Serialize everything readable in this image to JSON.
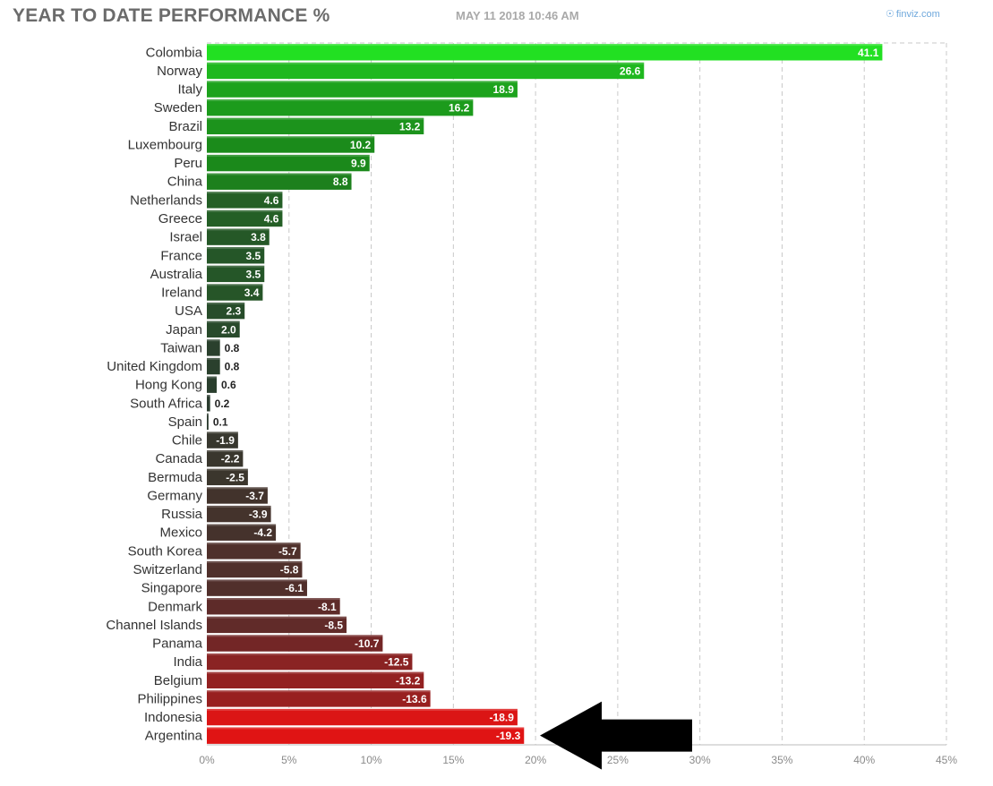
{
  "header": {
    "title": "YEAR TO DATE PERFORMANCE %",
    "timestamp": "MAY 11 2018 10:46 AM",
    "brand": "finviz.com",
    "brand_icon": "globe-icon"
  },
  "colors": {
    "positive_strong": "#22e022",
    "positive_mid": "#1b8a1b",
    "neutral_dark": "#2b3a2f",
    "negative_mid": "#6a2828",
    "negative_strong": "#e01414",
    "gridline": "#c8c8c8",
    "annotation_arrow": "#000000"
  },
  "chart_data": {
    "type": "bar",
    "orientation": "horizontal",
    "title": "YEAR TO DATE PERFORMANCE %",
    "xlim": [
      0,
      45
    ],
    "x_tick_values": [
      0,
      5,
      10,
      15,
      20,
      25,
      30,
      35,
      40,
      45
    ],
    "x_tick_labels": [
      "0%",
      "5%",
      "10%",
      "15%",
      "20%",
      "25%",
      "30%",
      "35%",
      "40%",
      "45%"
    ],
    "grid": true,
    "bar_length": "absolute value",
    "categories": [
      "Colombia",
      "Norway",
      "Italy",
      "Sweden",
      "Brazil",
      "Luxembourg",
      "Peru",
      "China",
      "Netherlands",
      "Greece",
      "Israel",
      "France",
      "Australia",
      "Ireland",
      "USA",
      "Japan",
      "Taiwan",
      "United Kingdom",
      "Hong Kong",
      "South Africa",
      "Spain",
      "Chile",
      "Canada",
      "Bermuda",
      "Germany",
      "Russia",
      "Mexico",
      "South Korea",
      "Switzerland",
      "Singapore",
      "Denmark",
      "Channel Islands",
      "Panama",
      "India",
      "Belgium",
      "Philippines",
      "Indonesia",
      "Argentina"
    ],
    "values": [
      41.1,
      26.6,
      18.9,
      16.2,
      13.2,
      10.2,
      9.9,
      8.8,
      4.6,
      4.6,
      3.8,
      3.5,
      3.5,
      3.4,
      2.3,
      2.0,
      0.8,
      0.8,
      0.6,
      0.2,
      0.1,
      -1.9,
      -2.2,
      -2.5,
      -3.7,
      -3.9,
      -4.2,
      -5.7,
      -5.8,
      -6.1,
      -8.1,
      -8.5,
      -10.7,
      -12.5,
      -13.2,
      -13.6,
      -18.9,
      -19.3
    ],
    "value_labels": [
      "41.1",
      "26.6",
      "18.9",
      "16.2",
      "13.2",
      "10.2",
      "9.9",
      "8.8",
      "4.6",
      "4.6",
      "3.8",
      "3.5",
      "3.5",
      "3.4",
      "2.3",
      "2.0",
      "0.8",
      "0.8",
      "0.6",
      "0.2",
      "0.1",
      "-1.9",
      "-2.2",
      "-2.5",
      "-3.7",
      "-3.9",
      "-4.2",
      "-5.7",
      "-5.8",
      "-6.1",
      "-8.1",
      "-8.5",
      "-10.7",
      "-12.5",
      "-13.2",
      "-13.6",
      "-18.9",
      "-19.3"
    ],
    "annotations": [
      {
        "type": "arrow",
        "points_to": "Argentina",
        "color": "#000000"
      }
    ]
  }
}
